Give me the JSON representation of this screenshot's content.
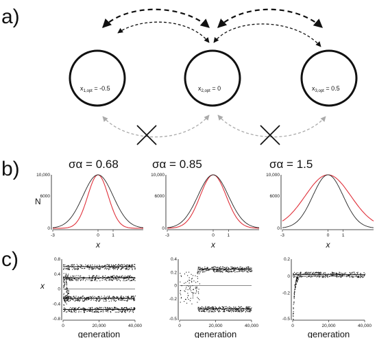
{
  "panels": {
    "a": "a)",
    "b": "b)",
    "c": "c)"
  },
  "demes": [
    {
      "label": "x",
      "sub": "1,opt",
      "value": " = -0.5"
    },
    {
      "label": "x",
      "sub": "2,opt",
      "value": " = 0"
    },
    {
      "label": "x",
      "sub": "3,opt",
      "value": " = 0.5"
    }
  ],
  "colors": {
    "ink": "#111111",
    "migration_blocked": "#aaaaaa",
    "curve_red": "#e0303a",
    "curve_black": "#222222"
  },
  "chart_data": [
    {
      "type": "line",
      "title": "σα = 0.68",
      "ylabel": "N",
      "xlabel": "x",
      "xlim": [
        -3,
        3
      ],
      "ylim": [
        0,
        10000
      ],
      "x_ticks": [
        "-3",
        "0",
        "1"
      ],
      "y_ticks": [
        "0",
        "6000",
        "10,000"
      ],
      "series": [
        {
          "color": "black",
          "kind": "gaussian",
          "sd": 1.0,
          "peak": 10000
        },
        {
          "color": "red",
          "kind": "gaussian",
          "sd": 0.68,
          "peak": 10000
        }
      ]
    },
    {
      "type": "line",
      "title": "σα = 0.85",
      "xlabel": "x",
      "xlim": [
        -3,
        3
      ],
      "ylim": [
        0,
        10000
      ],
      "x_ticks": [
        "-3",
        "0",
        "1"
      ],
      "y_ticks": [
        "0",
        "6000",
        "10,000"
      ],
      "series": [
        {
          "color": "black",
          "kind": "gaussian",
          "sd": 1.0,
          "peak": 10000
        },
        {
          "color": "red",
          "kind": "gaussian",
          "sd": 0.85,
          "peak": 10000
        }
      ]
    },
    {
      "type": "line",
      "title": "σα = 1.5",
      "xlabel": "x",
      "xlim": [
        -3,
        3
      ],
      "ylim": [
        0,
        10000
      ],
      "x_ticks": [
        "-3",
        "0",
        "1"
      ],
      "y_ticks": [
        "0",
        "6000",
        "10,000"
      ],
      "series": [
        {
          "color": "black",
          "kind": "gaussian",
          "sd": 1.0,
          "peak": 10000
        },
        {
          "color": "red",
          "kind": "gaussian",
          "sd": 1.5,
          "peak": 10000
        }
      ]
    },
    {
      "type": "scatter",
      "xlabel": "generation",
      "ylabel": "x",
      "xlim": [
        0,
        40000
      ],
      "ylim": [
        -0.8,
        0.8
      ],
      "x_ticks": [
        "0",
        "20,000",
        "40,000"
      ],
      "y_ticks": [
        "0.8",
        "0.4",
        "0",
        "-0.4",
        "-0.8"
      ],
      "branches": [
        {
          "start": 0,
          "level": 0.6
        },
        {
          "start": 0,
          "level": 0.3
        },
        {
          "start": 0,
          "level": -0.25
        },
        {
          "start": 0,
          "level": -0.55
        }
      ]
    },
    {
      "type": "scatter",
      "xlabel": "generation",
      "xlim": [
        0,
        40000
      ],
      "ylim": [
        -0.5,
        0.4
      ],
      "x_ticks": [
        "0",
        "20,000",
        "40,000"
      ],
      "y_ticks": [
        "0.4",
        "0.2",
        "0",
        "-0.2",
        "-0.5"
      ],
      "branches": [
        {
          "start": 10000,
          "level": 0.25
        },
        {
          "start": 10000,
          "level": -0.35
        }
      ]
    },
    {
      "type": "scatter",
      "xlabel": "generation",
      "xlim": [
        0,
        40000
      ],
      "ylim": [
        -0.5,
        0.2
      ],
      "x_ticks": [
        "0",
        "20,000",
        "40,000"
      ],
      "y_ticks": [
        "0.2",
        "0",
        "-0.2",
        "-0.5"
      ],
      "branches": [
        {
          "start": 0,
          "level": 0.02
        }
      ]
    }
  ]
}
